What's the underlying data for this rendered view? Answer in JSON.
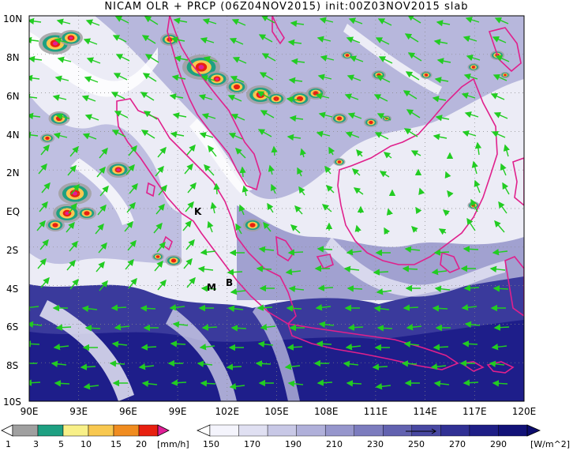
{
  "title": "NICAM  OLR  +  PRCP  (06Z04NOV2015)  init:00Z03NOV2015  slab",
  "map": {
    "lon_ticks": [
      "90E",
      "93E",
      "96E",
      "99E",
      "102E",
      "105E",
      "108E",
      "111E",
      "114E",
      "117E",
      "120E"
    ],
    "lat_ticks": [
      "10N",
      "8N",
      "6N",
      "4N",
      "2N",
      "EQ",
      "2S",
      "4S",
      "6S",
      "8S",
      "10S"
    ],
    "station_labels": [
      "K",
      "M",
      "B"
    ],
    "colors": {
      "olr_dark": "#1e1e8a",
      "olr_mid": "#6a6ab8",
      "olr_light": "#c8c8e6",
      "coastline": "#e0208c",
      "wind_vector": "#22cc22",
      "grid": "#888888"
    }
  },
  "precip_colorbar": {
    "labels": [
      "1",
      "3",
      "5",
      "10",
      "15",
      "20"
    ],
    "unit": "[mm/h]",
    "colors": [
      "#a0a0a0",
      "#1ea082",
      "#f8f088",
      "#f8c850",
      "#f08c20",
      "#e82010",
      "#e01e96"
    ]
  },
  "olr_colorbar": {
    "labels": [
      "150",
      "170",
      "190",
      "210",
      "230",
      "250",
      "270",
      "290"
    ],
    "unit": "[W/m^2]",
    "colors": [
      "#f4f4fc",
      "#e0e0f2",
      "#c8c8e6",
      "#b0b0da",
      "#9696cc",
      "#7c7cbe",
      "#6262b0",
      "#4848a2",
      "#303094",
      "#1e1e86",
      "#121278"
    ]
  }
}
